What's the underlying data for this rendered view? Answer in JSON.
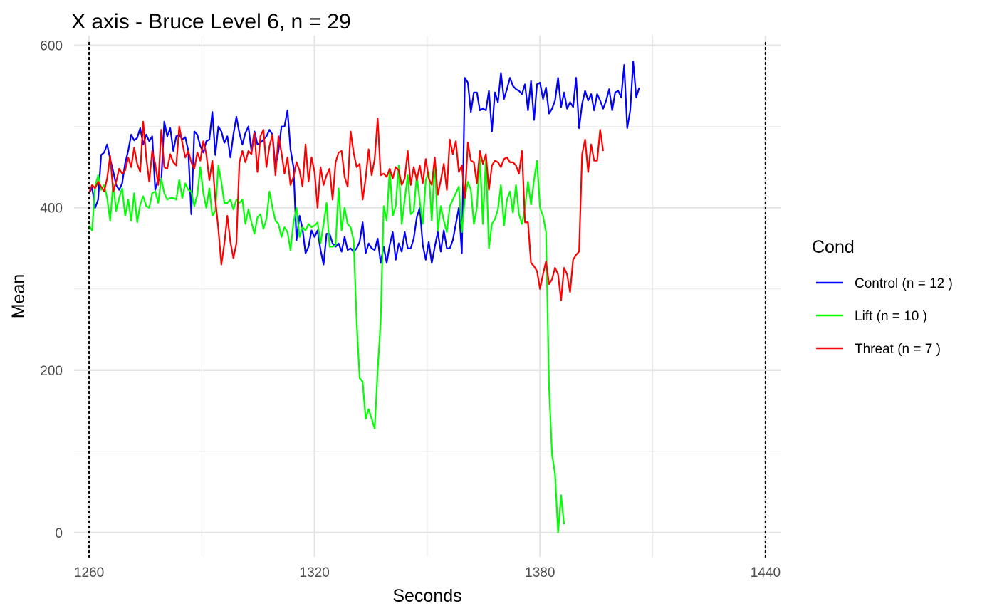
{
  "chart_data": {
    "type": "line",
    "title": "X axis - Bruce Level 6, n =  29",
    "xlabel": "Seconds",
    "ylabel": "Mean",
    "xlim": [
      1256,
      1444
    ],
    "ylim": [
      -30,
      612
    ],
    "x_ticks": [
      1260,
      1320,
      1380,
      1440
    ],
    "x_minor_ticks": [
      1290,
      1350,
      1410
    ],
    "y_ticks": [
      0,
      200,
      400,
      600
    ],
    "y_minor_ticks": [
      100,
      300,
      500
    ],
    "x_tick_labels": [
      "1260",
      "1320",
      "1380",
      "1440"
    ],
    "y_tick_labels": [
      "0",
      "200",
      "400",
      "600"
    ],
    "vlines": [
      1260,
      1440
    ],
    "grid": true,
    "legend": {
      "title": "Cond",
      "position": "right"
    },
    "x_start": 1260,
    "x_step": 0.8,
    "series": [
      {
        "name": "Control (n = 12 )",
        "color": "#0000ff",
        "values": [
          418,
          425,
          400,
          410,
          465,
          468,
          478,
          460,
          445,
          428,
          422,
          430,
          455,
          470,
          490,
          483,
          486,
          498,
          478,
          490,
          482,
          488,
          422,
          436,
          432,
          506,
          488,
          498,
          470,
          488,
          490,
          484,
          487,
          470,
          392,
          494,
          490,
          476,
          468,
          482,
          484,
          518,
          465,
          500,
          494,
          480,
          488,
          462,
          490,
          512,
          492,
          478,
          492,
          500,
          470,
          494,
          478,
          480,
          484,
          488,
          496,
          490,
          450,
          470,
          500,
          500,
          520,
          472,
          450,
          360,
          390,
          374,
          344,
          352,
          372,
          364,
          372,
          348,
          330,
          368,
          368,
          356,
          352,
          356,
          346,
          364,
          348,
          350,
          346,
          350,
          358,
          382,
          344,
          356,
          350,
          348,
          362,
          332,
          352,
          332,
          354,
          370,
          336,
          356,
          346,
          370,
          350,
          350,
          362,
          388,
          400,
          354,
          336,
          358,
          332,
          352,
          370,
          346,
          372,
          350,
          350,
          360,
          380,
          400,
          344,
          560,
          554,
          518,
          542,
          542,
          520,
          522,
          520,
          544,
          494,
          542,
          530,
          566,
          534,
          546,
          560,
          550,
          546,
          544,
          540,
          552,
          520,
          556,
          508,
          552,
          554,
          534,
          548,
          516,
          522,
          532,
          560,
          524,
          542,
          522,
          530,
          524,
          560,
          498,
          528,
          544,
          532,
          540,
          520,
          540,
          532,
          522,
          532,
          546,
          520,
          542,
          544,
          536,
          576,
          498,
          520,
          580,
          536,
          548
        ]
      },
      {
        "name": "Lift (n = 10 )",
        "color": "#00ff00",
        "values": [
          378,
          372,
          426,
          440,
          422,
          428,
          412,
          384,
          430,
          396,
          412,
          424,
          390,
          410,
          384,
          418,
          382,
          404,
          414,
          402,
          400,
          418,
          420,
          406,
          436,
          418,
          410,
          412,
          412,
          410,
          434,
          412,
          430,
          422,
          420,
          402,
          416,
          450,
          418,
          400,
          424,
          390,
          396,
          452,
          432,
          406,
          406,
          410,
          398,
          410,
          406,
          410,
          380,
          398,
          382,
          368,
          388,
          392,
          374,
          386,
          420,
          400,
          384,
          380,
          364,
          376,
          370,
          348,
          382,
          400,
          364,
          376,
          372,
          380,
          376,
          378,
          382,
          356,
          380,
          406,
          352,
          352,
          354,
          424,
          372,
          400,
          380,
          376,
          360,
          260,
          190,
          186,
          140,
          152,
          140,
          128,
          200,
          260,
          402,
          384,
          448,
          390,
          402,
          452,
          380,
          410,
          440,
          392,
          396,
          440,
          408,
          380,
          434,
          444,
          384,
          458,
          372,
          402,
          384,
          370,
          402,
          410,
          418,
          426,
          370,
          412,
          432,
          422,
          380,
          400,
          464,
          380,
          462,
          350,
          380,
          386,
          398,
          428,
          378,
          410,
          420,
          394,
          428,
          392,
          380,
          400,
          432,
          404,
          434,
          458,
          400,
          390,
          370,
          180,
          96,
          72,
          0,
          46,
          10
        ]
      },
      {
        "name": "Threat (n = 7 )",
        "color": "#ff0000",
        "values": [
          418,
          428,
          424,
          432,
          426,
          420,
          436,
          464,
          420,
          432,
          448,
          442,
          446,
          462,
          450,
          474,
          454,
          444,
          506,
          462,
          432,
          470,
          454,
          428,
          496,
          450,
          448,
          466,
          456,
          452,
          500,
          480,
          462,
          470,
          456,
          448,
          468,
          458,
          482,
          466,
          434,
          458,
          410,
          374,
          330,
          356,
          390,
          358,
          338,
          356,
          456,
          470,
          456,
          470,
          466,
          492,
          444,
          488,
          496,
          450,
          476,
          490,
          440,
          488,
          468,
          442,
          462,
          428,
          438,
          456,
          446,
          426,
          478,
          432,
          462,
          444,
          400,
          450,
          428,
          440,
          448,
          410,
          456,
          468,
          470,
          438,
          426,
          494,
          468,
          450,
          454,
          410,
          436,
          472,
          440,
          460,
          510,
          440,
          442,
          438,
          448,
          436,
          450,
          446,
          428,
          436,
          470,
          428,
          450,
          434,
          452,
          430,
          460,
          436,
          428,
          462,
          416,
          434,
          454,
          422,
          484,
          466,
          482,
          444,
          452,
          412,
          480,
          458,
          456,
          430,
          470,
          454,
          466,
          422,
          452,
          458,
          456,
          450,
          460,
          462,
          456,
          456,
          452,
          442,
          470,
          382,
          382,
          332,
          328,
          322,
          300,
          318,
          334,
          306,
          312,
          326,
          318,
          286,
          326,
          318,
          296,
          336,
          342,
          346,
          466,
          484,
          444,
          478,
          458,
          458,
          496,
          470
        ]
      }
    ]
  }
}
